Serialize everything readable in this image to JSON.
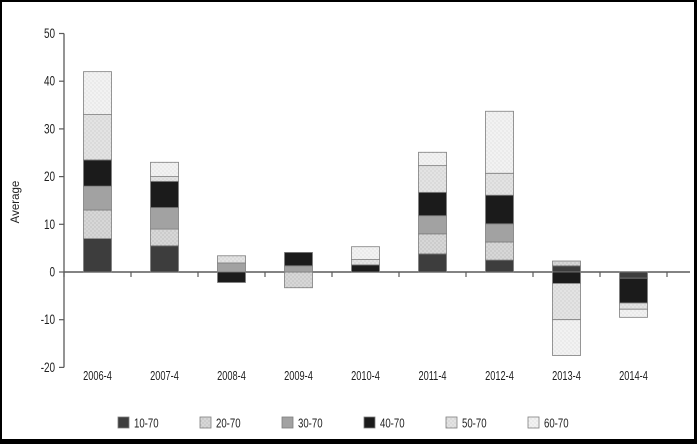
{
  "chart_data": {
    "type": "bar",
    "stacked": true,
    "title": "",
    "xlabel": "",
    "ylabel": "Average",
    "ylim": [
      -20,
      50
    ],
    "yticks": [
      50,
      40,
      30,
      20,
      10,
      0,
      -10,
      -20
    ],
    "grid": false,
    "legend_position": "bottom",
    "categories": [
      "2006-4",
      "2007-4",
      "2008-4",
      "2009-4",
      "2010-4",
      "2011-4",
      "2012-4",
      "2013-4",
      "2014-4"
    ],
    "series": [
      {
        "name": "10-70",
        "color": "#3d3d3d",
        "texture": "solid",
        "dot_color": "",
        "values": [
          7.0,
          5.5,
          0,
          0,
          0,
          3.8,
          2.5,
          1.3,
          -1.3
        ]
      },
      {
        "name": "20-70",
        "color": "#d7d7d7",
        "texture": "dots",
        "dot_color": "#9f9f9f",
        "values": [
          6.0,
          3.5,
          0,
          -3.3,
          0,
          4.2,
          3.8,
          1.0,
          0
        ]
      },
      {
        "name": "30-70",
        "color": "#a2a2a2",
        "texture": "solid",
        "dot_color": "",
        "values": [
          5.0,
          4.5,
          1.9,
          1.3,
          0,
          3.8,
          3.8,
          0,
          0
        ]
      },
      {
        "name": "40-70",
        "color": "#1b1b1b",
        "texture": "solid",
        "dot_color": "",
        "values": [
          5.5,
          5.5,
          -2.2,
          2.8,
          1.5,
          4.9,
          6.0,
          -2.4,
          -5.2
        ]
      },
      {
        "name": "50-70",
        "color": "#e3e3e3",
        "texture": "dots",
        "dot_color": "#b5b5b5",
        "values": [
          9.5,
          1.0,
          1.5,
          0,
          1.1,
          5.6,
          4.6,
          -7.6,
          -1.3
        ]
      },
      {
        "name": "60-70",
        "color": "#f2f2f2",
        "texture": "dots",
        "dot_color": "#cfcfcf",
        "values": [
          9.0,
          3.0,
          0,
          0,
          2.7,
          2.8,
          13.0,
          -7.5,
          -1.7
        ]
      }
    ],
    "axis_color": "#5a5a5a",
    "segment_border_color": "#7e7e7e"
  }
}
